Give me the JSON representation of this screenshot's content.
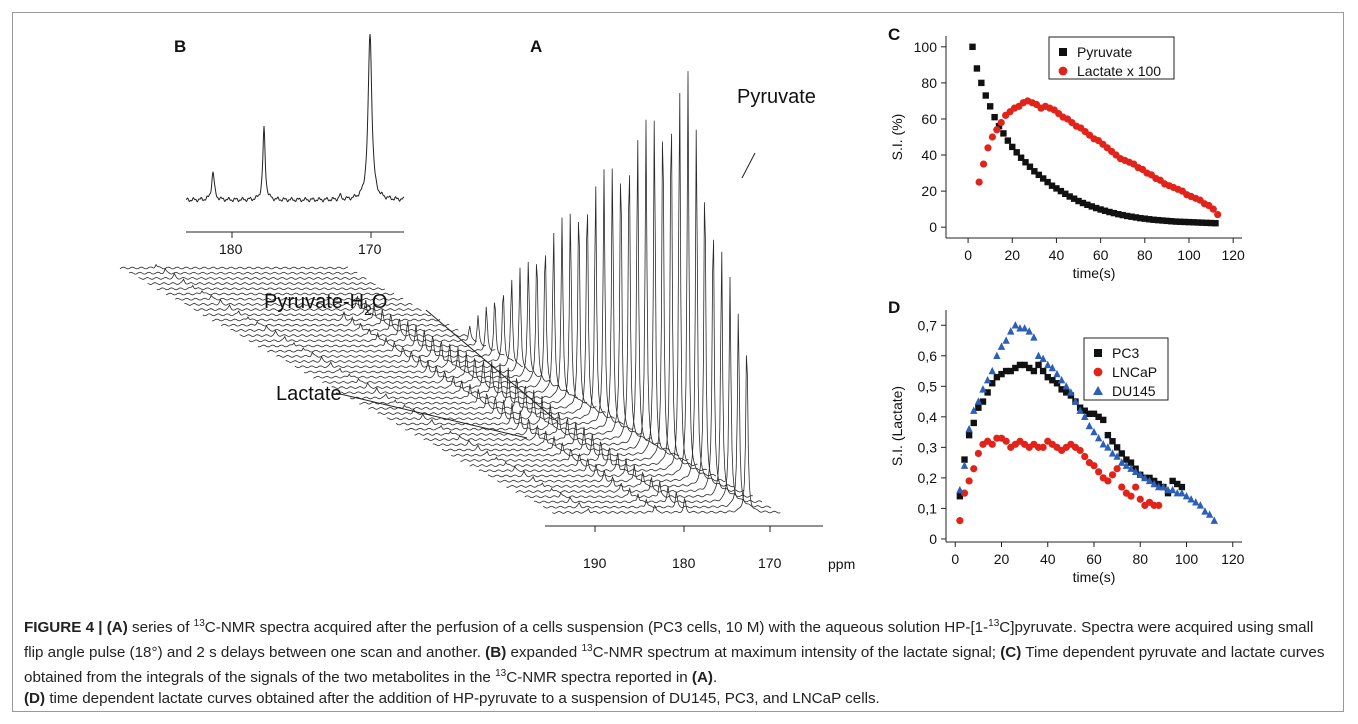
{
  "panels": {
    "A": "A",
    "B": "B",
    "C": "C",
    "D": "D"
  },
  "panel_A": {
    "annotations": [
      "Pyruvate",
      "Pyruvate-H",
      "2",
      "O",
      "Lactate"
    ],
    "x_ticks": [
      "190",
      "180",
      "170"
    ],
    "x_unit": "ppm"
  },
  "panel_B": {
    "x_ticks": [
      "180",
      "170"
    ]
  },
  "chart_data": [
    {
      "panel": "C",
      "type": "scatter",
      "xlabel": "time(s)",
      "ylabel": "S.I. (%)",
      "xlim": [
        -10,
        124
      ],
      "ylim": [
        -6,
        106
      ],
      "x_ticks": [
        "0",
        "20",
        "40",
        "60",
        "80",
        "100",
        "120"
      ],
      "y_ticks": [
        "0",
        "20",
        "40",
        "60",
        "80",
        "100"
      ],
      "legend_position": "top-right",
      "legend": [
        "Pyruvate",
        "Lactate x 100"
      ],
      "colors": [
        "#111111",
        "#e2231a"
      ],
      "markers": [
        "square",
        "circle"
      ],
      "series": [
        {
          "name": "Pyruvate",
          "x": [
            2,
            4,
            6,
            8,
            10,
            12,
            14,
            16,
            18,
            20,
            22,
            24,
            26,
            28,
            30,
            32,
            34,
            36,
            38,
            40,
            42,
            44,
            46,
            48,
            50,
            52,
            54,
            56,
            58,
            60,
            62,
            64,
            66,
            68,
            70,
            72,
            74,
            76,
            78,
            80,
            82,
            84,
            86,
            88,
            90,
            92,
            94,
            96,
            98,
            100,
            102,
            104,
            106,
            108,
            110,
            112
          ],
          "y": [
            100,
            88,
            80,
            73,
            67,
            61,
            56,
            52,
            48,
            44.5,
            41.5,
            38.5,
            36,
            33.5,
            31,
            29,
            27,
            25,
            23,
            21.5,
            20,
            18.5,
            17,
            15.8,
            14.5,
            13.4,
            12.4,
            11.5,
            10.6,
            9.8,
            9.1,
            8.4,
            7.8,
            7.2,
            6.7,
            6.2,
            5.8,
            5.4,
            5.0,
            4.7,
            4.4,
            4.1,
            3.9,
            3.7,
            3.5,
            3.3,
            3.1,
            3.0,
            2.9,
            2.8,
            2.7,
            2.6,
            2.5,
            2.4,
            2.3,
            2.2
          ]
        },
        {
          "name": "Lactate x 100",
          "x": [
            5,
            7,
            9,
            11,
            13,
            15,
            17,
            19,
            21,
            23,
            25,
            27,
            29,
            31,
            33,
            35,
            37,
            39,
            41,
            43,
            45,
            47,
            49,
            51,
            53,
            55,
            57,
            59,
            61,
            63,
            65,
            67,
            69,
            71,
            73,
            75,
            77,
            79,
            81,
            83,
            85,
            87,
            89,
            91,
            93,
            95,
            97,
            99,
            101,
            103,
            105,
            107,
            109,
            111,
            113
          ],
          "y": [
            25,
            35,
            44,
            50,
            54,
            58,
            62,
            64,
            66,
            67,
            69,
            70,
            69,
            68,
            66,
            67,
            66,
            65,
            63,
            61,
            60,
            58,
            56,
            55,
            53,
            51,
            49,
            48,
            46,
            44,
            42,
            40,
            38,
            37,
            36,
            35,
            33,
            32,
            30,
            29,
            27,
            26,
            24,
            23,
            22,
            21,
            20,
            18,
            17,
            16,
            15,
            13,
            12,
            10,
            7
          ]
        }
      ]
    },
    {
      "panel": "D",
      "type": "scatter",
      "xlabel": "time(s)",
      "ylabel": "S.I. (Lactate)",
      "xlim": [
        -4,
        124
      ],
      "ylim": [
        -0.01,
        0.75
      ],
      "x_ticks": [
        "0",
        "20",
        "40",
        "60",
        "80",
        "100",
        "120"
      ],
      "y_ticks": [
        "0",
        "0,1",
        "0,2",
        "0,3",
        "0,4",
        "0,5",
        "0,6",
        "0,7"
      ],
      "legend_position": "top-right",
      "legend": [
        "PC3",
        "LNCaP",
        "DU145"
      ],
      "colors": [
        "#111111",
        "#e2231a",
        "#2b5fb8"
      ],
      "markers": [
        "square",
        "circle",
        "triangle"
      ],
      "series": [
        {
          "name": "PC3",
          "x": [
            2,
            4,
            6,
            8,
            10,
            12,
            14,
            16,
            18,
            20,
            22,
            24,
            26,
            28,
            30,
            32,
            34,
            36,
            38,
            40,
            42,
            44,
            46,
            48,
            50,
            52,
            54,
            56,
            58,
            60,
            62,
            64,
            66,
            68,
            70,
            72,
            74,
            76,
            78,
            80,
            82,
            84,
            86,
            88,
            90,
            92,
            94,
            96,
            98
          ],
          "y": [
            0.14,
            0.26,
            0.34,
            0.38,
            0.43,
            0.45,
            0.48,
            0.51,
            0.53,
            0.54,
            0.55,
            0.55,
            0.56,
            0.57,
            0.57,
            0.56,
            0.55,
            0.57,
            0.55,
            0.53,
            0.52,
            0.51,
            0.49,
            0.48,
            0.47,
            0.45,
            0.43,
            0.42,
            0.41,
            0.41,
            0.4,
            0.39,
            0.34,
            0.32,
            0.3,
            0.28,
            0.26,
            0.25,
            0.23,
            0.21,
            0.2,
            0.2,
            0.19,
            0.18,
            0.17,
            0.15,
            0.19,
            0.18,
            0.17
          ]
        },
        {
          "name": "LNCaP",
          "x": [
            2,
            4,
            6,
            8,
            10,
            12,
            14,
            16,
            18,
            20,
            22,
            24,
            26,
            28,
            30,
            32,
            34,
            36,
            38,
            40,
            42,
            44,
            46,
            48,
            50,
            52,
            54,
            56,
            58,
            60,
            62,
            64,
            66,
            68,
            70,
            72,
            74,
            76,
            78,
            80,
            82,
            84,
            86,
            88
          ],
          "y": [
            0.06,
            0.15,
            0.19,
            0.23,
            0.28,
            0.31,
            0.32,
            0.31,
            0.33,
            0.33,
            0.32,
            0.3,
            0.31,
            0.32,
            0.31,
            0.3,
            0.31,
            0.3,
            0.3,
            0.32,
            0.31,
            0.3,
            0.29,
            0.3,
            0.31,
            0.3,
            0.29,
            0.27,
            0.25,
            0.24,
            0.22,
            0.2,
            0.19,
            0.21,
            0.23,
            0.17,
            0.15,
            0.14,
            0.17,
            0.13,
            0.11,
            0.12,
            0.11,
            0.11
          ]
        },
        {
          "name": "DU145",
          "x": [
            2,
            4,
            6,
            8,
            10,
            12,
            14,
            16,
            18,
            20,
            22,
            24,
            26,
            28,
            30,
            32,
            34,
            36,
            38,
            40,
            42,
            44,
            46,
            48,
            50,
            52,
            54,
            56,
            58,
            60,
            62,
            64,
            66,
            68,
            70,
            72,
            74,
            76,
            78,
            80,
            82,
            84,
            86,
            88,
            90,
            92,
            94,
            96,
            98,
            100,
            102,
            104,
            106,
            108,
            110,
            112
          ],
          "y": [
            0.16,
            0.24,
            0.36,
            0.42,
            0.45,
            0.49,
            0.52,
            0.55,
            0.6,
            0.63,
            0.65,
            0.68,
            0.7,
            0.69,
            0.69,
            0.68,
            0.66,
            0.6,
            0.59,
            0.57,
            0.56,
            0.54,
            0.52,
            0.5,
            0.48,
            0.45,
            0.42,
            0.4,
            0.37,
            0.35,
            0.33,
            0.31,
            0.3,
            0.28,
            0.27,
            0.25,
            0.24,
            0.23,
            0.22,
            0.21,
            0.2,
            0.19,
            0.18,
            0.17,
            0.17,
            0.16,
            0.16,
            0.15,
            0.15,
            0.14,
            0.13,
            0.12,
            0.11,
            0.09,
            0.08,
            0.06
          ]
        }
      ]
    }
  ],
  "caption": {
    "figure_label": "FIGURE 4 | ",
    "a_ref": "(A)",
    "a_text_1": " series of ",
    "sup_13_a": "13",
    "a_text_2": "C-NMR spectra acquired after the perfusion of a cells suspension (PC3 cells, 10 M) with the aqueous solution HP-[1-",
    "sup_13_b": "13",
    "a_text_3": "C]pyruvate. Spectra were acquired using small flip angle pulse (18°) and 2 s delays between one scan and another. ",
    "b_ref": "(B)",
    "b_text_1": " expanded ",
    "sup_13_c": "13",
    "b_text_2": "C-NMR spectrum at maximum intensity of the lactate signal; ",
    "c_ref": "(C)",
    "c_text_1": " Time dependent pyruvate and lactate curves obtained from the integrals of the signals of the two metabolites in the ",
    "sup_13_d": "13",
    "c_text_2": "C-NMR spectra reported in ",
    "c_ref_a": "(A)",
    "c_text_3": ".",
    "d_ref": "(D)",
    "d_text": " time dependent lactate curves obtained after the addition of HP-pyruvate to a suspension of DU145, PC3, and LNCaP cells."
  }
}
